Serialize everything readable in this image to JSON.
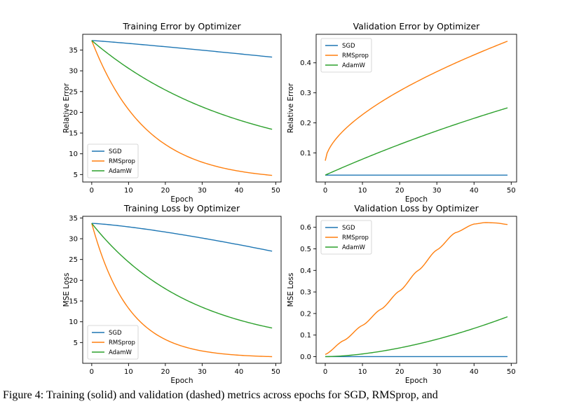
{
  "caption": "Figure 4: Training (solid) and validation (dashed) metrics across epochs for SGD, RMSprop, and",
  "colors": {
    "SGD": "#1f77b4",
    "RMSprop": "#ff7f0e",
    "AdamW": "#2ca02c"
  },
  "chart_data": [
    {
      "type": "line",
      "title": "Training Error by Optimizer",
      "xlabel": "Epoch",
      "ylabel": "Relative Error",
      "xlim": [
        -2.45,
        51.45
      ],
      "ylim": [
        3.2,
        38.8
      ],
      "xticks": [
        0,
        10,
        20,
        30,
        40,
        50
      ],
      "yticks": [
        5,
        10,
        15,
        20,
        25,
        30,
        35
      ],
      "legend_position": "lower-left",
      "series": [
        {
          "name": "SGD",
          "curve": {
            "start": 37.3,
            "end": 33.3,
            "kind": "pow",
            "p": 1.1
          }
        },
        {
          "name": "RMSprop",
          "curve": {
            "start": 37.3,
            "end": 4.8,
            "kind": "exp",
            "k": 0.068
          }
        },
        {
          "name": "AdamW",
          "curve": {
            "start": 37.3,
            "end": 15.9,
            "kind": "exp",
            "k": 0.025
          }
        }
      ]
    },
    {
      "type": "line",
      "title": "Validation Error by Optimizer",
      "xlabel": "Epoch",
      "ylabel": "Relative Error",
      "xlim": [
        -2.45,
        51.45
      ],
      "ylim": [
        0.003,
        0.495
      ],
      "xticks": [
        0,
        10,
        20,
        30,
        40,
        50
      ],
      "yticks": [
        0.1,
        0.2,
        0.3,
        0.4
      ],
      "legend_position": "top-left",
      "series": [
        {
          "name": "SGD",
          "curve": {
            "start": 0.026,
            "end": 0.026,
            "kind": "linear"
          }
        },
        {
          "name": "RMSprop",
          "curve": {
            "start": 0.074,
            "end": 0.472,
            "kind": "sqrt"
          }
        },
        {
          "name": "AdamW",
          "curve": {
            "start": 0.026,
            "end": 0.25,
            "kind": "sat",
            "k": 0.008
          }
        }
      ]
    },
    {
      "type": "line",
      "title": "Training Loss by Optimizer",
      "xlabel": "Epoch",
      "ylabel": "MSE Loss",
      "xlim": [
        -2.45,
        51.45
      ],
      "ylim": [
        0.0,
        35.4
      ],
      "xticks": [
        0,
        10,
        20,
        30,
        40,
        50
      ],
      "yticks": [
        5,
        10,
        15,
        20,
        25,
        30,
        35
      ],
      "legend_position": "lower-left",
      "series": [
        {
          "name": "SGD",
          "curve": {
            "start": 33.7,
            "end": 27.0,
            "kind": "pow",
            "p": 1.3
          }
        },
        {
          "name": "RMSprop",
          "curve": {
            "start": 33.7,
            "end": 1.6,
            "kind": "exp",
            "k": 0.1
          }
        },
        {
          "name": "AdamW",
          "curve": {
            "start": 33.7,
            "end": 8.5,
            "kind": "exp",
            "k": 0.037
          }
        }
      ]
    },
    {
      "type": "line",
      "title": "Validation Loss by Optimizer",
      "xlabel": "Epoch",
      "ylabel": "MSE Loss",
      "xlim": [
        -2.45,
        51.45
      ],
      "ylim": [
        -0.031,
        0.651
      ],
      "xticks": [
        0,
        10,
        20,
        30,
        40,
        50
      ],
      "yticks": [
        0.0,
        0.1,
        0.2,
        0.3,
        0.4,
        0.5,
        0.6
      ],
      "legend_position": "top-left",
      "series": [
        {
          "name": "SGD",
          "curve": {
            "start": 0.0,
            "end": 0.0,
            "kind": "linear"
          }
        },
        {
          "name": "RMSprop",
          "curve": {
            "kind": "points",
            "pts": [
              [
                0,
                0.01
              ],
              [
                5,
                0.075
              ],
              [
                10,
                0.145
              ],
              [
                15,
                0.22
              ],
              [
                20,
                0.305
              ],
              [
                25,
                0.4
              ],
              [
                30,
                0.495
              ],
              [
                35,
                0.575
              ],
              [
                40,
                0.615
              ],
              [
                43,
                0.622
              ],
              [
                46,
                0.62
              ],
              [
                49,
                0.613
              ]
            ]
          }
        },
        {
          "name": "AdamW",
          "curve": {
            "start": 0.0,
            "end": 0.185,
            "kind": "pow",
            "p": 1.7
          }
        }
      ]
    }
  ]
}
